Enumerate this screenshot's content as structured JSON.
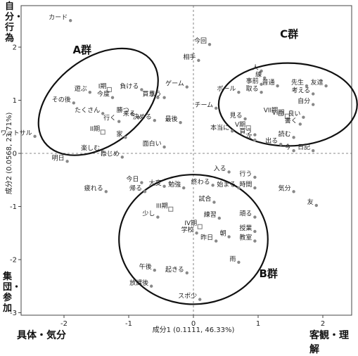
{
  "chart_data": {
    "type": "scatter",
    "title": "",
    "xlabel": "成分1 (0.1111, 46.33%)",
    "ylabel": "成分2 (0.0568, 23.71%)",
    "xlim": [
      -2.5,
      2.5
    ],
    "ylim": [
      -3.0,
      2.8
    ],
    "x_ticks": [
      "-2",
      "-1",
      "0",
      "1",
      "2"
    ],
    "y_ticks": [
      "-3",
      "-2",
      "-1",
      "0",
      "1",
      "2"
    ],
    "x_tick_values": [
      -2,
      -1,
      0,
      1,
      2
    ],
    "y_tick_values": [
      -3,
      -2,
      -1,
      0,
      1,
      2
    ],
    "grid": false,
    "reference_lines": [
      "x=0",
      "y=0"
    ],
    "corner_labels": {
      "top_left": "自分・行為",
      "bottom_left": "集団・参加",
      "bottom_axis_left": "具体・気分",
      "bottom_axis_right": "客観・理解"
    },
    "clusters": [
      {
        "name": "A群",
        "cx": -1.47,
        "cy": 0.97,
        "rx": 1.04,
        "ry": 0.82,
        "rotation_deg": 37,
        "label_x": -1.72,
        "label_y": 1.88
      },
      {
        "name": "B群",
        "cx": 0.0,
        "cy": -1.62,
        "rx": 1.15,
        "ry": 1.22,
        "rotation_deg": 0,
        "label_x": 1.16,
        "label_y": -2.33
      },
      {
        "name": "C群",
        "cx": 1.46,
        "cy": 0.92,
        "rx": 1.07,
        "ry": 0.78,
        "rotation_deg": 0,
        "label_x": 1.48,
        "label_y": 2.18
      }
    ],
    "points": [
      {
        "label": "カード",
        "x": -1.9,
        "y": 2.5
      },
      {
        "label": "今回",
        "x": 0.25,
        "y": 2.05
      },
      {
        "label": "相手",
        "x": 0.08,
        "y": 1.75
      },
      {
        "label": "負ける",
        "x": -0.8,
        "y": 1.2
      },
      {
        "label": "I期",
        "x": -1.3,
        "y": 1.2,
        "marker": "square"
      },
      {
        "label": "ゲーム",
        "x": -0.1,
        "y": 1.25
      },
      {
        "label": "遊ぶ",
        "x": -1.6,
        "y": 1.15
      },
      {
        "label": "今度",
        "x": -1.25,
        "y": 1.05
      },
      {
        "label": "買う",
        "x": -0.55,
        "y": 1.05
      },
      {
        "label": "思う",
        "x": -0.45,
        "y": 1.05
      },
      {
        "label": "その後",
        "x": -1.85,
        "y": 0.95
      },
      {
        "label": "チーム",
        "x": 0.35,
        "y": 0.85
      },
      {
        "label": "たくさん",
        "x": -1.4,
        "y": 0.75
      },
      {
        "label": "勝つ",
        "x": -0.95,
        "y": 0.75
      },
      {
        "label": "来る",
        "x": -0.85,
        "y": 0.68
      },
      {
        "label": "行く",
        "x": -1.15,
        "y": 0.6
      },
      {
        "label": "決める",
        "x": -0.6,
        "y": 0.62
      },
      {
        "label": "最後",
        "x": -0.2,
        "y": 0.58
      },
      {
        "label": "II期",
        "x": -1.4,
        "y": 0.4,
        "marker": "square"
      },
      {
        "label": "家",
        "x": -1.05,
        "y": 0.3
      },
      {
        "label": "ワットサル",
        "x": -2.45,
        "y": 0.32
      },
      {
        "label": "面白い",
        "x": -0.45,
        "y": 0.12
      },
      {
        "label": "楽しむ",
        "x": -1.4,
        "y": 0.03
      },
      {
        "label": "はじめ",
        "x": -1.1,
        "y": -0.07
      },
      {
        "label": "明日",
        "x": -1.95,
        "y": -0.15
      },
      {
        "label": "入る",
        "x": 0.55,
        "y": -0.35
      },
      {
        "label": "行う",
        "x": 0.95,
        "y": -0.45
      },
      {
        "label": "今日",
        "x": -0.8,
        "y": -0.55
      },
      {
        "label": "大変",
        "x": -0.45,
        "y": -0.62
      },
      {
        "label": "帰る",
        "x": -0.75,
        "y": -0.72
      },
      {
        "label": "勉強",
        "x": -0.15,
        "y": -0.65
      },
      {
        "label": "終わる",
        "x": 0.3,
        "y": -0.6
      },
      {
        "label": "始まる",
        "x": 0.7,
        "y": -0.65
      },
      {
        "label": "時間",
        "x": 0.95,
        "y": -0.65
      },
      {
        "label": "疲れる",
        "x": -1.35,
        "y": -0.72
      },
      {
        "label": "気分",
        "x": 1.55,
        "y": -0.72
      },
      {
        "label": "友",
        "x": 1.9,
        "y": -0.98
      },
      {
        "label": "試合",
        "x": 0.32,
        "y": -0.92
      },
      {
        "label": "III期",
        "x": -0.35,
        "y": -1.05,
        "marker": "square"
      },
      {
        "label": "少し",
        "x": -0.55,
        "y": -1.2
      },
      {
        "label": "練習",
        "x": 0.4,
        "y": -1.22
      },
      {
        "label": "頑る",
        "x": 0.95,
        "y": -1.2
      },
      {
        "label": "IV期",
        "x": 0.1,
        "y": -1.38,
        "marker": "square"
      },
      {
        "label": "学校",
        "x": 0.05,
        "y": -1.5
      },
      {
        "label": "授業",
        "x": 0.95,
        "y": -1.47
      },
      {
        "label": "朝",
        "x": 0.55,
        "y": -1.57
      },
      {
        "label": "教室",
        "x": 0.95,
        "y": -1.65
      },
      {
        "label": "昨日",
        "x": 0.35,
        "y": -1.65
      },
      {
        "label": "雨",
        "x": 0.7,
        "y": -2.05
      },
      {
        "label": "午後",
        "x": -0.6,
        "y": -2.2
      },
      {
        "label": "起きる",
        "x": -0.1,
        "y": -2.25
      },
      {
        "label": "放課後",
        "x": -0.65,
        "y": -2.5
      },
      {
        "label": "スポ少",
        "x": 0.1,
        "y": -2.75
      },
      {
        "label": "人",
        "x": 1.05,
        "y": 1.55
      },
      {
        "label": "練",
        "x": 1.1,
        "y": 1.42
      },
      {
        "label": "事前",
        "x": 1.05,
        "y": 1.3
      },
      {
        "label": "普通",
        "x": 1.3,
        "y": 1.27
      },
      {
        "label": "先生",
        "x": 1.75,
        "y": 1.27
      },
      {
        "label": "友達",
        "x": 2.05,
        "y": 1.27
      },
      {
        "label": "ボール",
        "x": 0.7,
        "y": 1.15
      },
      {
        "label": "取る",
        "x": 1.05,
        "y": 1.15
      },
      {
        "label": "考える",
        "x": 1.85,
        "y": 1.12
      },
      {
        "label": "自分",
        "x": 1.85,
        "y": 0.92
      },
      {
        "label": "VII期",
        "x": 1.35,
        "y": 0.75,
        "marker": "square"
      },
      {
        "label": "VI期",
        "x": 1.45,
        "y": 0.7,
        "marker": "square"
      },
      {
        "label": "見る",
        "x": 0.8,
        "y": 0.65
      },
      {
        "label": "良い",
        "x": 1.7,
        "y": 0.68
      },
      {
        "label": "本当に",
        "x": 0.6,
        "y": 0.42
      },
      {
        "label": "V期",
        "x": 0.85,
        "y": 0.48,
        "marker": "square"
      },
      {
        "label": "書く",
        "x": 1.65,
        "y": 0.55
      },
      {
        "label": "買う",
        "x": 0.95,
        "y": 0.35
      },
      {
        "label": "読む",
        "x": 1.55,
        "y": 0.3
      },
      {
        "label": "次",
        "x": 0.95,
        "y": 0.25
      },
      {
        "label": "出る",
        "x": 1.35,
        "y": 0.17
      },
      {
        "label": "今",
        "x": 1.55,
        "y": 0.05
      },
      {
        "label": "日記",
        "x": 1.85,
        "y": 0.05
      }
    ]
  }
}
